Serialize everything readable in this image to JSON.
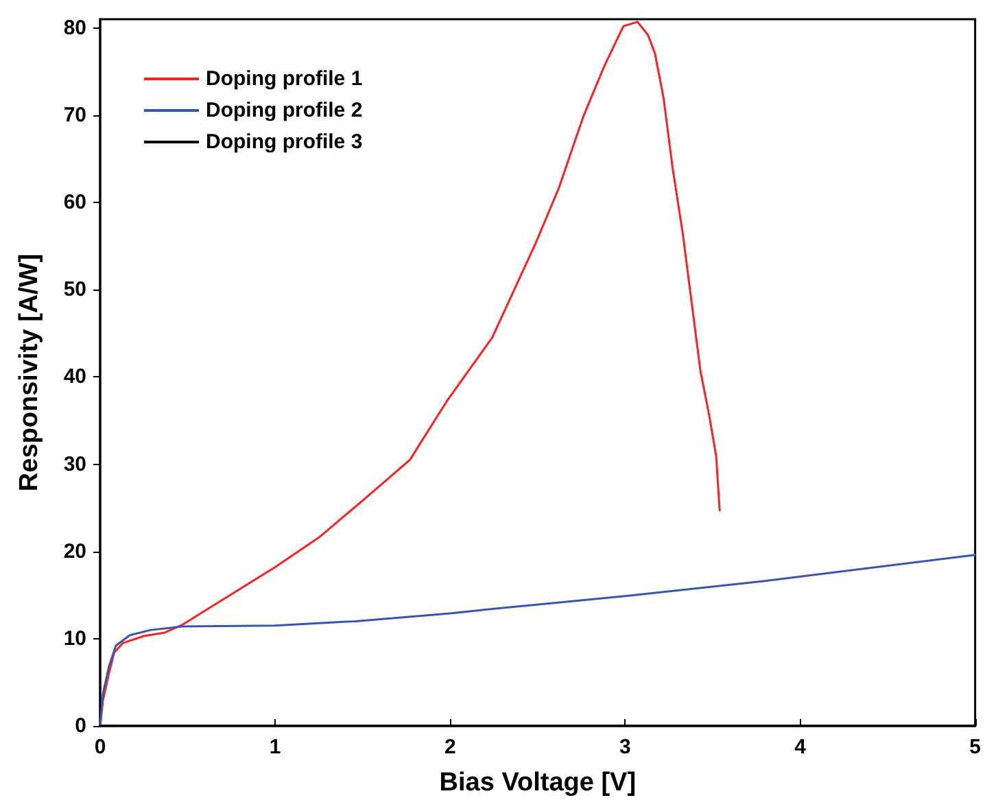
{
  "chart_data": {
    "type": "line",
    "xlabel": "Bias Voltage [V]",
    "ylabel": "Responsivity [A/W]",
    "xlim": [
      0,
      5
    ],
    "xticks": [
      0,
      1,
      2,
      3,
      4,
      5
    ],
    "ylim": [
      0,
      81
    ],
    "yticks": [
      0,
      10,
      20,
      30,
      40,
      50,
      60,
      70,
      80
    ],
    "grid": false,
    "legend": "top left",
    "marker": "none",
    "line_style": "solid",
    "series": [
      {
        "name": "Doping profile 1",
        "color": "#ff2020",
        "x": [
          0,
          0.016,
          0.05,
          0.08,
          0.13,
          0.25,
          0.37,
          0.47,
          1.0,
          1.25,
          1.51,
          1.77,
          1.98,
          2.24,
          2.49,
          2.62,
          2.76,
          2.88,
          2.99,
          3.07,
          3.13,
          3.17,
          3.22,
          3.27,
          3.33,
          3.38,
          3.43,
          3.48,
          3.52,
          3.54
        ],
        "values": [
          0,
          2.9,
          6,
          8.4,
          9.5,
          10.3,
          10.7,
          11.6,
          18.2,
          21.6,
          26,
          30.5,
          37.2,
          44.5,
          55.4,
          61.6,
          69.8,
          75.6,
          80.2,
          80.7,
          79.2,
          77.1,
          71.9,
          64.1,
          56.3,
          48.5,
          40.7,
          35.6,
          30.9,
          24.7
        ]
      },
      {
        "name": "Doping profile 2",
        "color": "#3a55b0",
        "x": [
          0,
          0.016,
          0.05,
          0.09,
          0.17,
          0.29,
          0.47,
          1.0,
          1.46,
          2.0,
          2.24,
          3.01,
          3.79,
          5.0
        ],
        "values": [
          0,
          3.7,
          6.8,
          9.2,
          10.4,
          11,
          11.4,
          11.5,
          12,
          12.9,
          13.4,
          14.9,
          16.6,
          19.6
        ]
      },
      {
        "name": "Doping profile 3",
        "color": "#000000",
        "x": [
          0,
          2.5,
          5
        ],
        "values": [
          0,
          0,
          0
        ]
      }
    ]
  }
}
